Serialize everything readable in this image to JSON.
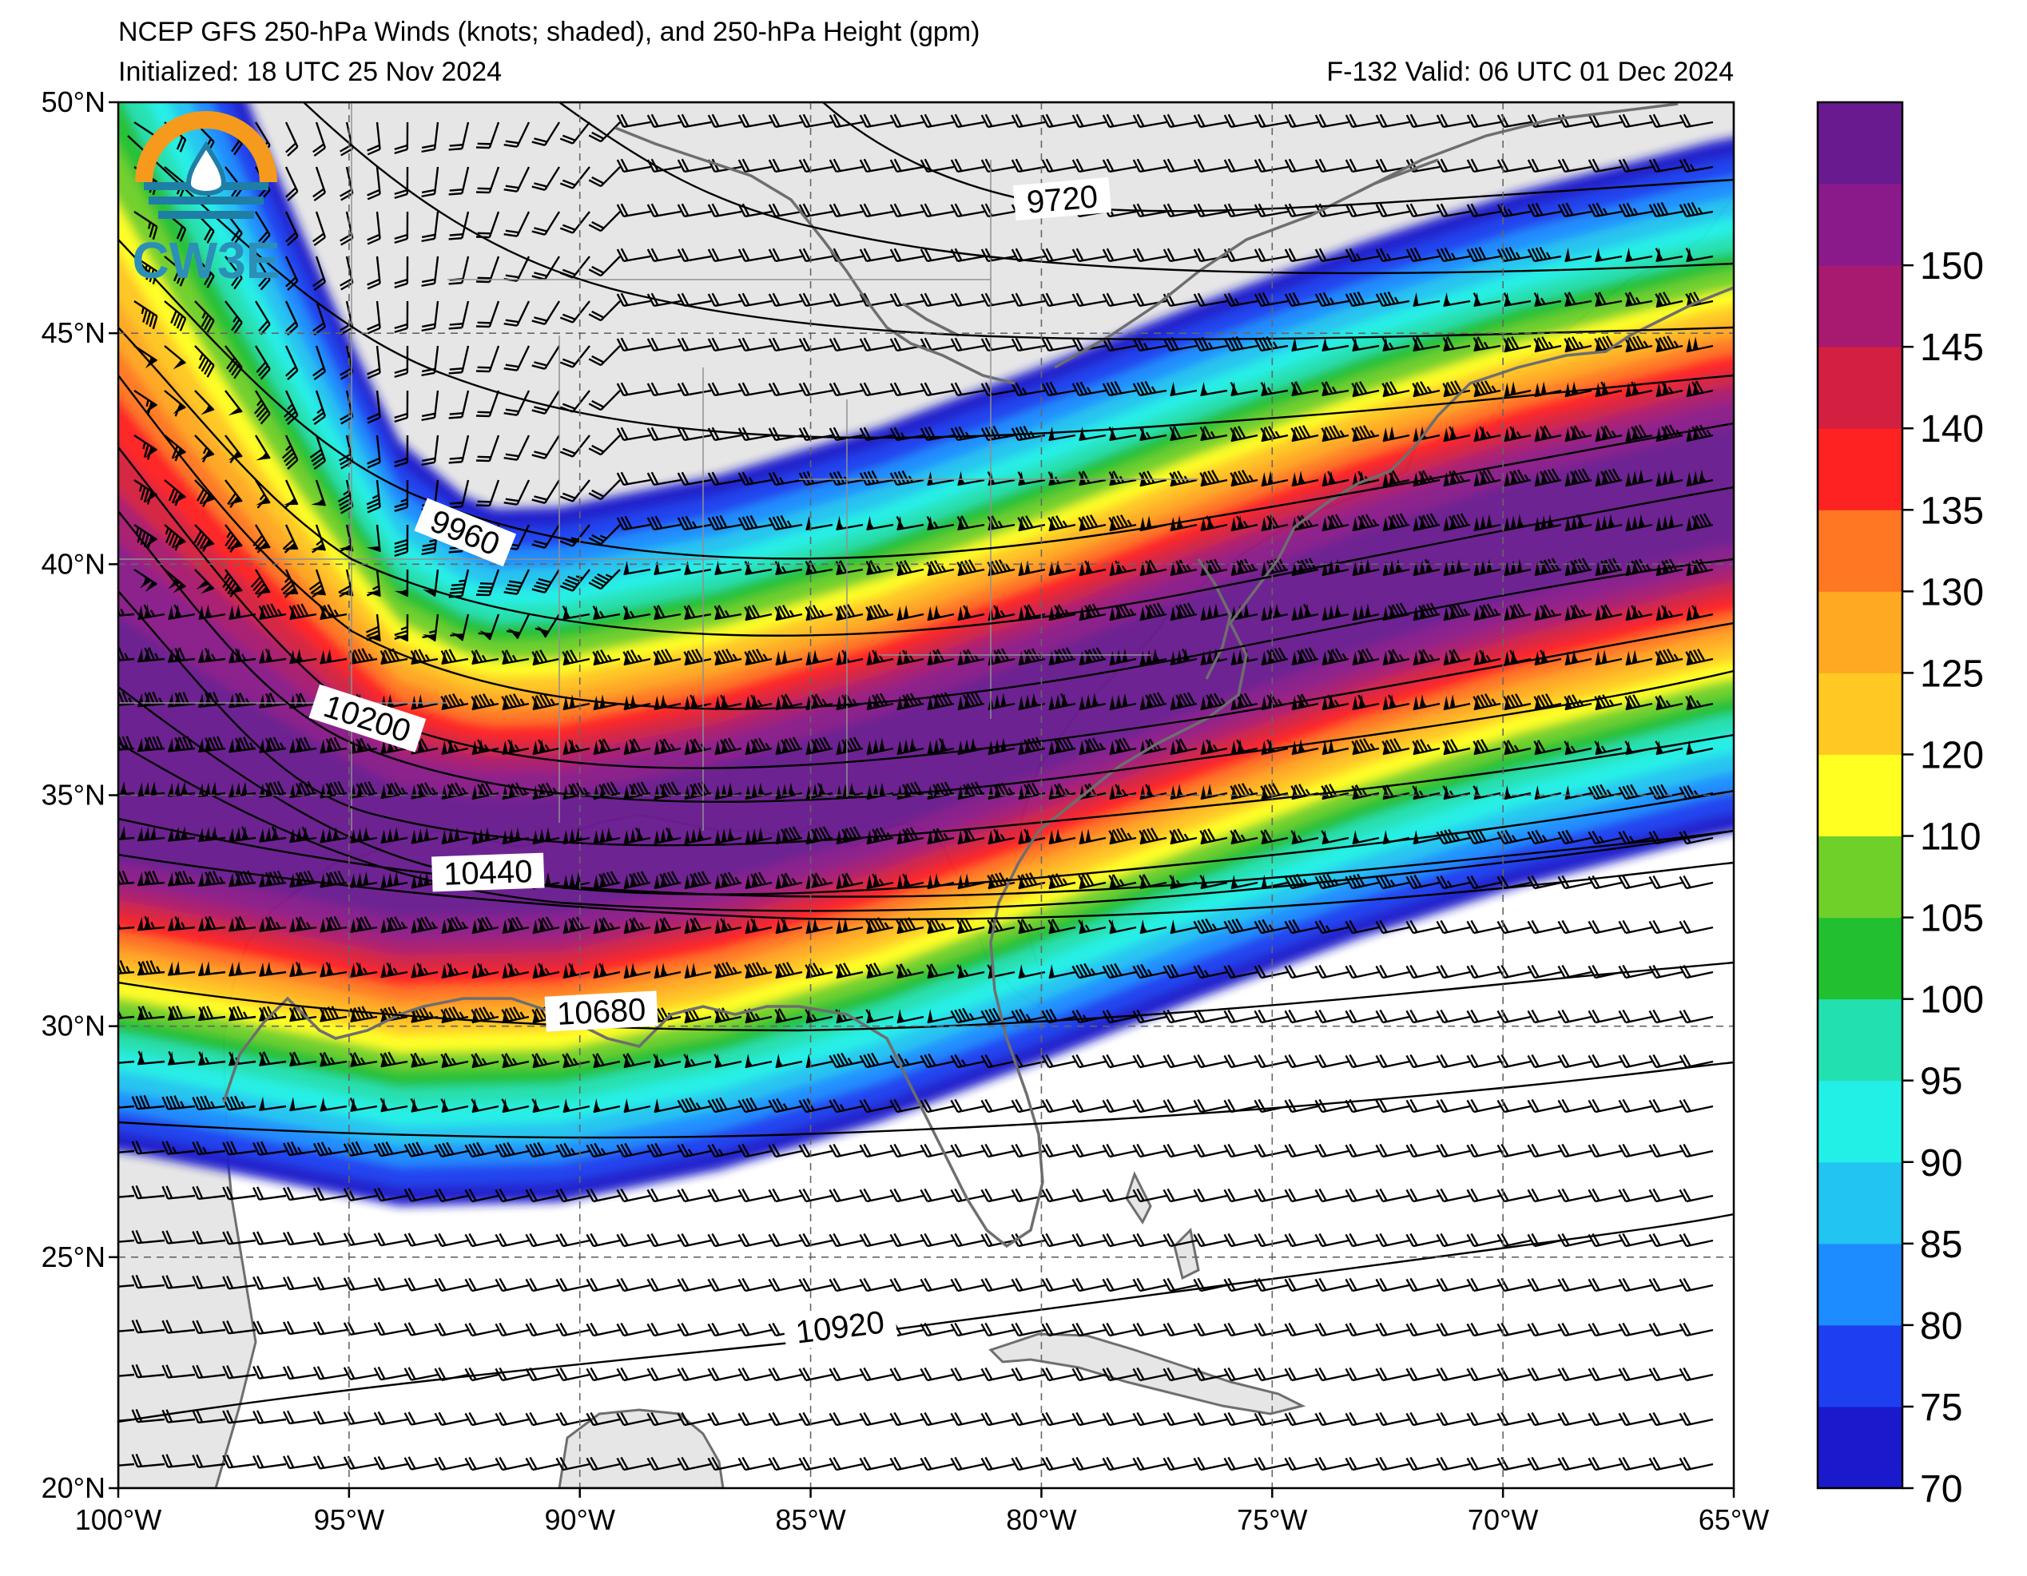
{
  "header": {
    "title": "NCEP GFS 250-hPa Winds (knots; shaded), and 250-hPa Height (gpm)",
    "initialized": "Initialized: 18 UTC 25 Nov 2024",
    "valid": "F-132  Valid: 06 UTC 01 Dec 2024"
  },
  "logo": {
    "text": "CW3E",
    "colors": {
      "sun": "#F59A1C",
      "wave": "#1F7EA6"
    }
  },
  "map": {
    "lat_ticks": [
      "50°N",
      "45°N",
      "40°N",
      "35°N",
      "30°N",
      "25°N",
      "20°N"
    ],
    "lon_ticks": [
      "100°W",
      "95°W",
      "90°W",
      "85°W",
      "80°W",
      "75°W",
      "70°W",
      "65°W"
    ],
    "extent": {
      "lon": [
        -100,
        -65
      ],
      "lat": [
        20,
        50
      ]
    },
    "land_color": "#E6E6E6",
    "contour_labels": [
      "9720",
      "9960",
      "10200",
      "10440",
      "10680",
      "10920"
    ]
  },
  "colorbar": {
    "levels": [
      "70",
      "75",
      "80",
      "85",
      "90",
      "95",
      "100",
      "105",
      "110",
      "120",
      "125",
      "130",
      "135",
      "140",
      "145",
      "150"
    ],
    "colors": [
      "#1A1ACC",
      "#1E3FF0",
      "#1C8CFF",
      "#22C4F0",
      "#22F0E6",
      "#22E0B0",
      "#22C030",
      "#70D02A",
      "#FFFF22",
      "#FFC822",
      "#FFA822",
      "#FF7722",
      "#FF2222",
      "#D42040",
      "#A81A70",
      "#8A1A8A",
      "#6A1A8F"
    ]
  }
}
